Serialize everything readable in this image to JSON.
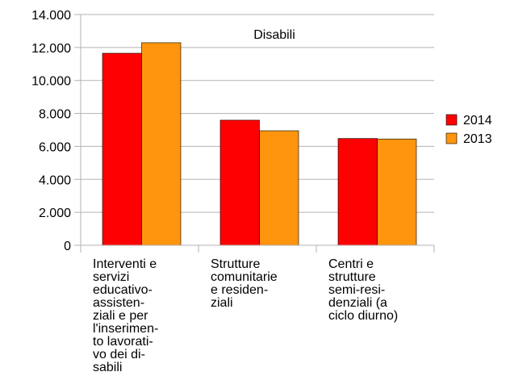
{
  "chart_data": {
    "type": "bar",
    "title": "Disabili",
    "categories": [
      "Interventi e\nservizi\neducativo-\nassisten-\nziali e per\nl'inserimen-\nto lavorati-\nvo dei di-\nsabili",
      "Strutture\ncomunitarie\ne residen-\nziali",
      "Centri e\nstrutture\nsemi-resi-\ndenziali (a\nciclo diurno)"
    ],
    "series": [
      {
        "name": "2014",
        "color": "#ff0000",
        "values": [
          11650,
          7590,
          6480
        ]
      },
      {
        "name": "2013",
        "color": "#ff950e",
        "values": [
          12290,
          6950,
          6450
        ]
      }
    ],
    "ylim": [
      0,
      14000
    ],
    "yticks": [
      0,
      {
        "value": 2000,
        "label": "2.000"
      },
      {
        "value": 4000,
        "label": "4.000"
      },
      {
        "value": 6000,
        "label": "6.000"
      },
      {
        "value": 8000,
        "label": "8.000"
      },
      {
        "value": 10000,
        "label": "10.000"
      },
      {
        "value": 12000,
        "label": "12.000"
      },
      {
        "value": 14000,
        "label": "14.000"
      }
    ],
    "grid": true,
    "legend": "right"
  }
}
